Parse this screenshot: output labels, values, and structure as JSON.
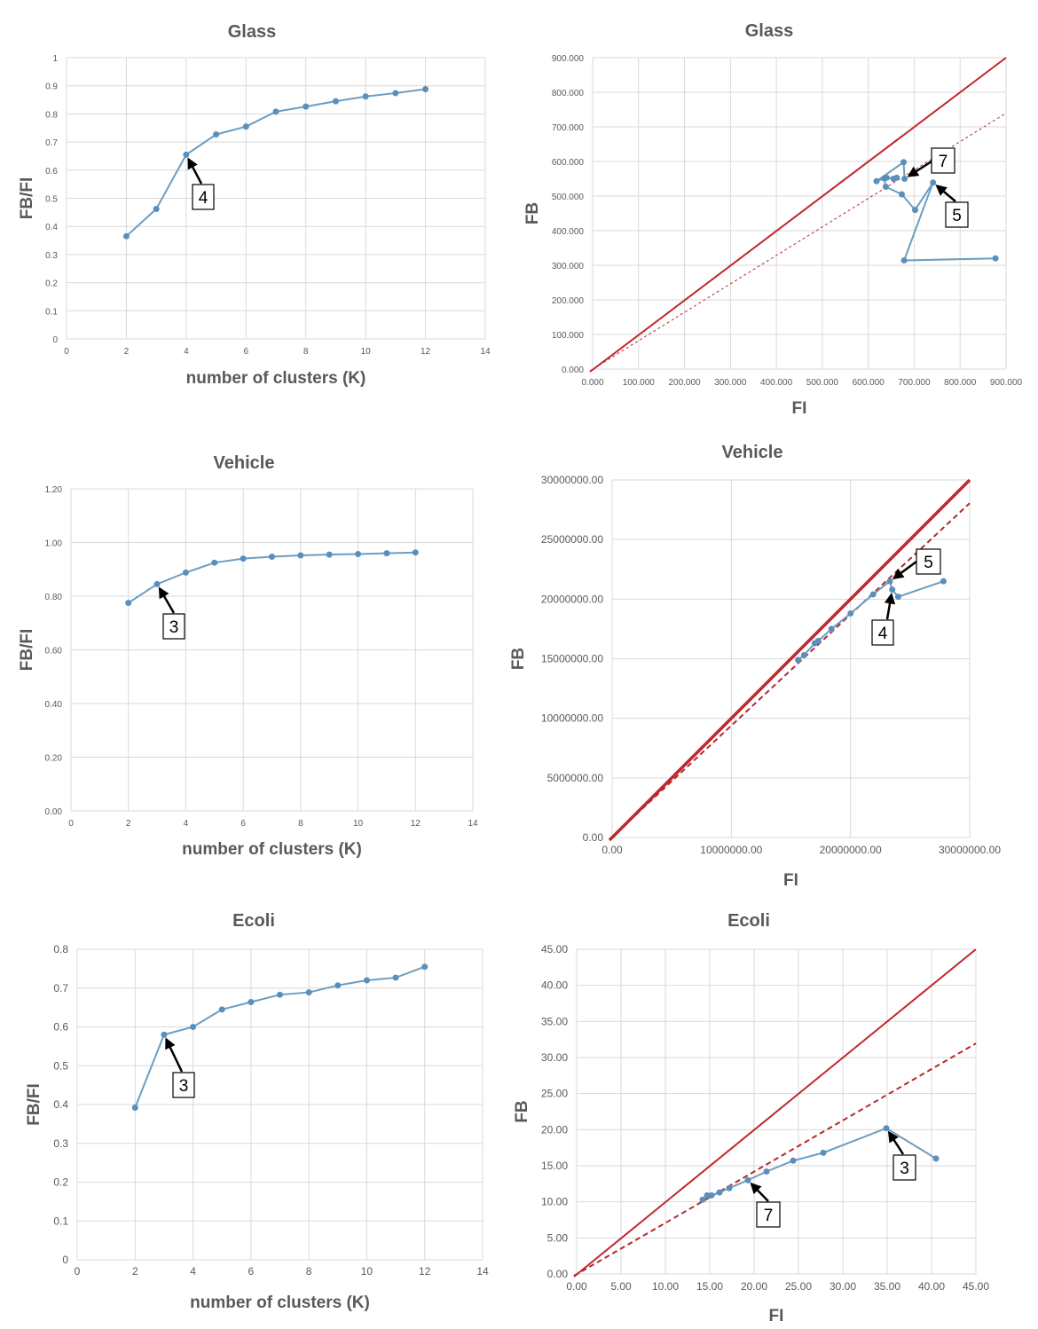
{
  "chart_data": [
    {
      "id": "glass-ratio",
      "type": "line",
      "title": "Glass",
      "xlabel": "number of clusters (K)",
      "ylabel": "FB/FI",
      "xlim": [
        0,
        14
      ],
      "ylim": [
        0,
        1
      ],
      "xticks": [
        "0",
        "2",
        "4",
        "6",
        "8",
        "10",
        "12",
        "14"
      ],
      "yticks": [
        "0",
        "0.1",
        "0.2",
        "0.3",
        "0.4",
        "0.5",
        "0.6",
        "0.7",
        "0.8",
        "0.9",
        "1"
      ],
      "x": [
        2,
        3,
        4,
        5,
        6,
        7,
        8,
        9,
        10,
        11,
        12
      ],
      "y": [
        0.365,
        0.462,
        0.655,
        0.727,
        0.755,
        0.808,
        0.826,
        0.845,
        0.862,
        0.874,
        0.888
      ],
      "annotations": [
        {
          "label": "4",
          "x": 4,
          "y": 0.655
        }
      ]
    },
    {
      "id": "glass-fbfi",
      "type": "scatter",
      "title": "Glass",
      "xlabel": "FI",
      "ylabel": "FB",
      "xlim": [
        0,
        900
      ],
      "ylim": [
        0,
        900
      ],
      "xticks": [
        "0.000",
        "100.000",
        "200.000",
        "300.000",
        "400.000",
        "500.000",
        "600.000",
        "700.000",
        "800.000",
        "900.000"
      ],
      "yticks": [
        "0.000",
        "100.000",
        "200.000",
        "300.000",
        "400.000",
        "500.000",
        "600.000",
        "700.000",
        "800.000",
        "900.000"
      ],
      "x": [
        877,
        678,
        741,
        702,
        673,
        638,
        635,
        662,
        655,
        640,
        618,
        677,
        679
      ],
      "y": [
        320,
        314,
        539,
        460,
        505,
        527,
        551,
        553,
        550,
        553,
        543,
        598,
        550
      ],
      "reference_line": {
        "style": "solid",
        "slope": 1
      },
      "fit_line": {
        "style": "dashed",
        "slope": 0.822
      },
      "annotations": [
        {
          "label": "7",
          "x": 679,
          "y": 550
        },
        {
          "label": "5",
          "x": 741,
          "y": 539
        }
      ]
    },
    {
      "id": "vehicle-ratio",
      "type": "line",
      "title": "Vehicle",
      "xlabel": "number of clusters (K)",
      "ylabel": "FB/FI",
      "xlim": [
        0,
        14
      ],
      "ylim": [
        0,
        1.2
      ],
      "xticks": [
        "0",
        "2",
        "4",
        "6",
        "8",
        "10",
        "12",
        "14"
      ],
      "yticks": [
        "0.00",
        "0.20",
        "0.40",
        "0.60",
        "0.80",
        "1.00",
        "1.20"
      ],
      "x": [
        2,
        3,
        4,
        5,
        6,
        7,
        8,
        9,
        10,
        11,
        12
      ],
      "y": [
        0.775,
        0.845,
        0.888,
        0.925,
        0.94,
        0.947,
        0.952,
        0.955,
        0.957,
        0.96,
        0.963
      ],
      "annotations": [
        {
          "label": "3",
          "x": 3,
          "y": 0.845
        }
      ]
    },
    {
      "id": "vehicle-fbfi",
      "type": "scatter",
      "title": "Vehicle",
      "xlabel": "FI",
      "ylabel": "FB",
      "xlim": [
        0,
        30000000
      ],
      "ylim": [
        0,
        30000000
      ],
      "xticks": [
        "0.00",
        "10000000.00",
        "20000000.00",
        "30000000.00"
      ],
      "yticks": [
        "0.00",
        "5000000.00",
        "10000000.00",
        "15000000.00",
        "20000000.00",
        "25000000.00",
        "30000000.00"
      ],
      "x": [
        27800000,
        24000000,
        23500000,
        23300000,
        21900000,
        20000000,
        18400000,
        17300000,
        17000000,
        16100000,
        15600000
      ],
      "y": [
        21500000,
        20200000,
        20800000,
        21500000,
        20400000,
        18800000,
        17500000,
        16500000,
        16300000,
        15300000,
        14900000
      ],
      "reference_line": {
        "style": "solid",
        "slope": 1
      },
      "fit_line": {
        "style": "dashed",
        "slope": 0.935
      },
      "annotations": [
        {
          "label": "5",
          "x": 23300000,
          "y": 21500000
        },
        {
          "label": "4",
          "x": 23500000,
          "y": 20800000
        }
      ]
    },
    {
      "id": "ecoli-ratio",
      "type": "line",
      "title": "Ecoli",
      "xlabel": "number of clusters (K)",
      "ylabel": "FB/FI",
      "xlim": [
        0,
        14
      ],
      "ylim": [
        0,
        0.8
      ],
      "xticks": [
        "0",
        "2",
        "4",
        "6",
        "8",
        "10",
        "12",
        "14"
      ],
      "yticks": [
        "0",
        "0.1",
        "0.2",
        "0.3",
        "0.4",
        "0.5",
        "0.6",
        "0.7",
        "0.8"
      ],
      "x": [
        2,
        3,
        4,
        5,
        6,
        7,
        8,
        9,
        10,
        11,
        12
      ],
      "y": [
        0.392,
        0.58,
        0.6,
        0.645,
        0.664,
        0.683,
        0.689,
        0.707,
        0.72,
        0.727,
        0.755
      ],
      "annotations": [
        {
          "label": "3",
          "x": 3,
          "y": 0.58
        }
      ]
    },
    {
      "id": "ecoli-fbfi",
      "type": "scatter",
      "title": "Ecoli",
      "xlabel": "FI",
      "ylabel": "FB",
      "xlim": [
        0,
        45
      ],
      "ylim": [
        0,
        45
      ],
      "xticks": [
        "0.00",
        "5.00",
        "10.00",
        "15.00",
        "20.00",
        "25.00",
        "30.00",
        "35.00",
        "40.00",
        "45.00"
      ],
      "yticks": [
        "0.00",
        "5.00",
        "10.00",
        "15.00",
        "20.00",
        "25.00",
        "30.00",
        "35.00",
        "40.00",
        "45.00"
      ],
      "x": [
        40.5,
        34.9,
        27.8,
        24.4,
        21.4,
        19.3,
        17.2,
        16.1,
        15.2,
        14.7,
        14.2
      ],
      "y": [
        16.0,
        20.2,
        16.8,
        15.7,
        14.2,
        13.0,
        11.9,
        11.3,
        10.9,
        10.9,
        10.3
      ],
      "reference_line": {
        "style": "solid",
        "slope": 1
      },
      "fit_line": {
        "style": "dashed",
        "slope": 0.71
      },
      "annotations": [
        {
          "label": "3",
          "x": 34.9,
          "y": 20.2
        },
        {
          "label": "7",
          "x": 19.3,
          "y": 13.0
        }
      ]
    }
  ]
}
